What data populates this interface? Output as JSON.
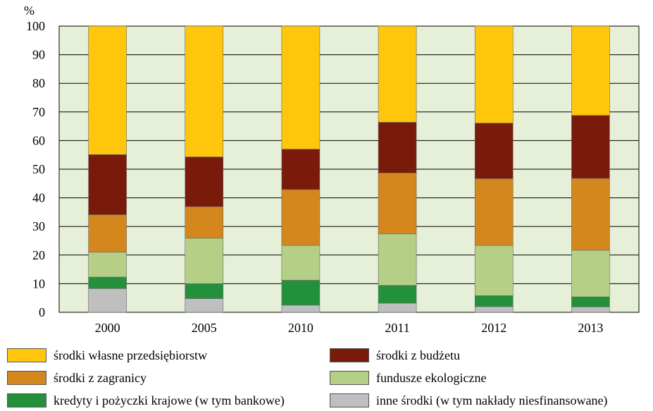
{
  "chart_data": {
    "type": "bar",
    "stacked": true,
    "ylabel": "%",
    "ylim": [
      0,
      100
    ],
    "yticks": [
      0,
      10,
      20,
      30,
      40,
      50,
      60,
      70,
      80,
      90,
      100
    ],
    "grid": true,
    "legend_position": "bottom",
    "categories": [
      "2000",
      "2005",
      "2010",
      "2011",
      "2012",
      "2013"
    ],
    "series": [
      {
        "name": "inne środki (w tym nakłady niesfinansowane)",
        "color": "#bfbfbf",
        "values": [
          8.3,
          4.8,
          2.5,
          3.2,
          2.0,
          1.9
        ]
      },
      {
        "name": "kredyty i pożyczki krajowe (w tym bankowe)",
        "color": "#23913c",
        "values": [
          4.0,
          5.2,
          8.7,
          6.2,
          3.8,
          3.5
        ]
      },
      {
        "name": "fundusze ekologiczne",
        "color": "#b5cf87",
        "values": [
          8.7,
          15.9,
          12.2,
          18.0,
          17.6,
          16.3
        ]
      },
      {
        "name": "środki z zagranicy",
        "color": "#d4871d",
        "values": [
          13.1,
          11.0,
          19.5,
          21.3,
          23.3,
          25.1
        ]
      },
      {
        "name": "środki z budżetu",
        "color": "#7a1a0a",
        "values": [
          21.0,
          17.4,
          14.1,
          17.7,
          19.4,
          22.0
        ]
      },
      {
        "name": "środki własne przedsiębiorstw",
        "color": "#ffc60b",
        "values": [
          44.9,
          45.7,
          43.0,
          33.6,
          33.9,
          31.2
        ]
      }
    ]
  },
  "legend": {
    "items": [
      {
        "label": "środki własne przedsiębiorstw",
        "color": "#ffc60b"
      },
      {
        "label": "środki z budżetu",
        "color": "#7a1a0a"
      },
      {
        "label": "środki z zagranicy",
        "color": "#d4871d"
      },
      {
        "label": "fundusze ekologiczne",
        "color": "#b5cf87"
      },
      {
        "label": "kredyty i pożyczki krajowe (w tym bankowe)",
        "color": "#23913c"
      },
      {
        "label": "inne środki (w tym nakłady niesfinansowane)",
        "color": "#bfbfbf"
      }
    ]
  },
  "colors": {
    "plot_background": "#e6f0d8",
    "grid": "#000000"
  }
}
